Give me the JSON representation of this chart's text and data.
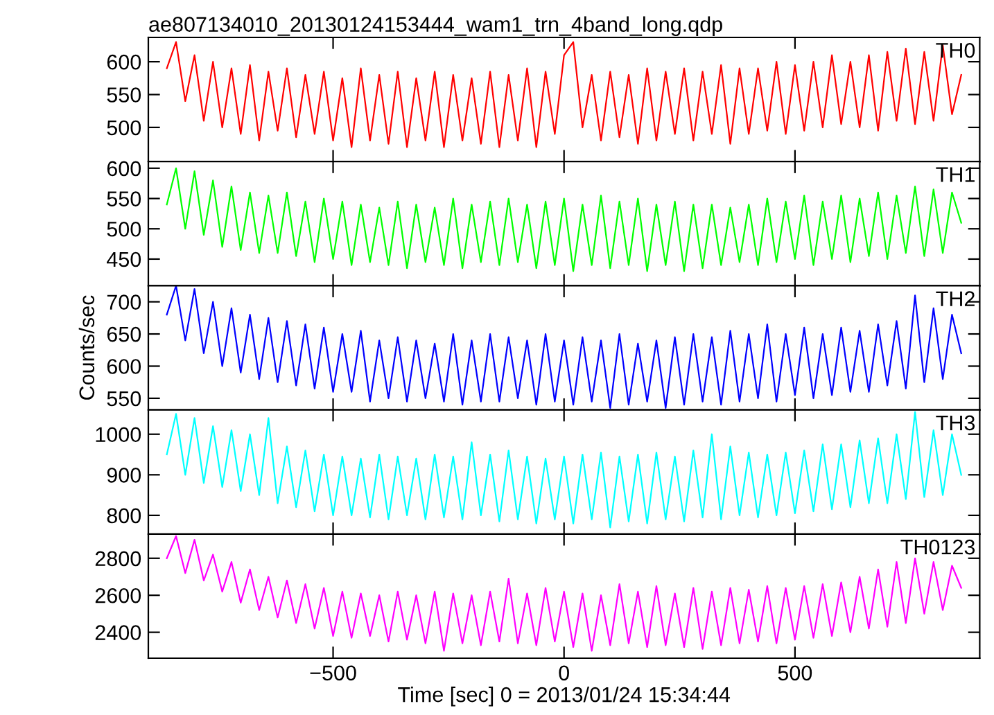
{
  "chart_data": [
    {
      "type": "line",
      "title": "ae807134010_20130124153444_wam1_trn_4band_long.qdp",
      "x": [
        -860,
        -840,
        -820,
        -800,
        -780,
        -760,
        -740,
        -720,
        -700,
        -680,
        -660,
        -640,
        -620,
        -600,
        -580,
        -560,
        -540,
        -520,
        -500,
        -480,
        -460,
        -440,
        -420,
        -400,
        -380,
        -360,
        -340,
        -320,
        -300,
        -280,
        -260,
        -240,
        -220,
        -200,
        -180,
        -160,
        -140,
        -120,
        -100,
        -80,
        -60,
        -40,
        -20,
        0,
        20,
        40,
        60,
        80,
        100,
        120,
        140,
        160,
        180,
        200,
        220,
        240,
        260,
        280,
        300,
        320,
        340,
        360,
        380,
        400,
        420,
        440,
        460,
        480,
        500,
        520,
        540,
        560,
        580,
        600,
        620,
        640,
        660,
        680,
        700,
        720,
        740,
        760,
        780,
        800,
        820,
        840,
        860
      ],
      "xlim": [
        -900,
        900
      ],
      "xticks": [
        -500,
        0,
        500
      ],
      "ylim": [
        448,
        637
      ],
      "yticks": [
        500,
        550,
        600
      ],
      "tick_labels": "y",
      "series": [
        {
          "name": "TH0",
          "color": "#ff0000",
          "values": [
            590,
            630,
            540,
            610,
            510,
            600,
            500,
            590,
            490,
            595,
            480,
            585,
            495,
            590,
            485,
            580,
            490,
            585,
            480,
            575,
            470,
            590,
            480,
            580,
            475,
            585,
            470,
            575,
            480,
            585,
            470,
            580,
            480,
            575,
            475,
            585,
            470,
            580,
            480,
            590,
            470,
            585,
            490,
            610,
            630,
            500,
            580,
            480,
            585,
            485,
            580,
            475,
            590,
            480,
            585,
            490,
            590,
            480,
            585,
            490,
            595,
            475,
            590,
            490,
            590,
            495,
            600,
            490,
            595,
            495,
            600,
            500,
            610,
            505,
            600,
            500,
            610,
            495,
            615,
            510,
            620,
            505,
            615,
            510,
            625,
            520,
            580
          ]
        }
      ]
    },
    {
      "type": "line",
      "x": [
        -860,
        -840,
        -820,
        -800,
        -780,
        -760,
        -740,
        -720,
        -700,
        -680,
        -660,
        -640,
        -620,
        -600,
        -580,
        -560,
        -540,
        -520,
        -500,
        -480,
        -460,
        -440,
        -420,
        -400,
        -380,
        -360,
        -340,
        -320,
        -300,
        -280,
        -260,
        -240,
        -220,
        -200,
        -180,
        -160,
        -140,
        -120,
        -100,
        -80,
        -60,
        -40,
        -20,
        0,
        20,
        40,
        60,
        80,
        100,
        120,
        140,
        160,
        180,
        200,
        220,
        240,
        260,
        280,
        300,
        320,
        340,
        360,
        380,
        400,
        420,
        440,
        460,
        480,
        500,
        520,
        540,
        560,
        580,
        600,
        620,
        640,
        660,
        680,
        700,
        720,
        740,
        760,
        780,
        800,
        820,
        840,
        860
      ],
      "xlim": [
        -900,
        900
      ],
      "xticks": [
        -500,
        0,
        500
      ],
      "ylim": [
        406,
        611
      ],
      "yticks": [
        450,
        500,
        550,
        600
      ],
      "tick_labels": "y",
      "series": [
        {
          "name": "TH1",
          "color": "#00ff00",
          "values": [
            540,
            600,
            500,
            595,
            490,
            580,
            470,
            570,
            465,
            560,
            460,
            555,
            460,
            560,
            455,
            545,
            445,
            550,
            450,
            545,
            440,
            540,
            445,
            535,
            440,
            545,
            435,
            540,
            445,
            535,
            440,
            550,
            435,
            540,
            445,
            545,
            440,
            550,
            445,
            540,
            435,
            545,
            440,
            550,
            430,
            540,
            440,
            555,
            435,
            545,
            440,
            550,
            430,
            540,
            440,
            545,
            430,
            540,
            435,
            540,
            440,
            535,
            445,
            540,
            440,
            550,
            445,
            545,
            450,
            555,
            440,
            545,
            450,
            555,
            445,
            550,
            455,
            560,
            450,
            555,
            460,
            570,
            455,
            565,
            460,
            560,
            510
          ]
        }
      ]
    },
    {
      "type": "line",
      "ylabel": "Counts/sec",
      "x": [
        -860,
        -840,
        -820,
        -800,
        -780,
        -760,
        -740,
        -720,
        -700,
        -680,
        -660,
        -640,
        -620,
        -600,
        -580,
        -560,
        -540,
        -520,
        -500,
        -480,
        -460,
        -440,
        -420,
        -400,
        -380,
        -360,
        -340,
        -320,
        -300,
        -280,
        -260,
        -240,
        -220,
        -200,
        -180,
        -160,
        -140,
        -120,
        -100,
        -80,
        -60,
        -40,
        -20,
        0,
        20,
        40,
        60,
        80,
        100,
        120,
        140,
        160,
        180,
        200,
        220,
        240,
        260,
        280,
        300,
        320,
        340,
        360,
        380,
        400,
        420,
        440,
        460,
        480,
        500,
        520,
        540,
        560,
        580,
        600,
        620,
        640,
        660,
        680,
        700,
        720,
        740,
        760,
        780,
        800,
        820,
        840,
        860
      ],
      "xlim": [
        -900,
        900
      ],
      "xticks": [
        -500,
        0,
        500
      ],
      "ylim": [
        532,
        725
      ],
      "yticks": [
        550,
        600,
        650,
        700
      ],
      "tick_labels": "y",
      "series": [
        {
          "name": "TH2",
          "color": "#0000ff",
          "values": [
            680,
            725,
            640,
            720,
            620,
            700,
            600,
            690,
            590,
            680,
            580,
            675,
            575,
            670,
            570,
            665,
            565,
            660,
            560,
            650,
            560,
            655,
            545,
            640,
            550,
            645,
            545,
            640,
            550,
            635,
            545,
            650,
            540,
            640,
            545,
            650,
            545,
            645,
            550,
            640,
            540,
            650,
            545,
            640,
            540,
            645,
            545,
            640,
            535,
            650,
            540,
            635,
            545,
            640,
            535,
            645,
            540,
            650,
            545,
            645,
            540,
            655,
            545,
            650,
            550,
            665,
            545,
            650,
            555,
            660,
            550,
            650,
            555,
            660,
            560,
            655,
            560,
            665,
            570,
            670,
            565,
            710,
            575,
            690,
            580,
            680,
            620
          ]
        }
      ]
    },
    {
      "type": "line",
      "x": [
        -860,
        -840,
        -820,
        -800,
        -780,
        -760,
        -740,
        -720,
        -700,
        -680,
        -660,
        -640,
        -620,
        -600,
        -580,
        -560,
        -540,
        -520,
        -500,
        -480,
        -460,
        -440,
        -420,
        -400,
        -380,
        -360,
        -340,
        -320,
        -300,
        -280,
        -260,
        -240,
        -220,
        -200,
        -180,
        -160,
        -140,
        -120,
        -100,
        -80,
        -60,
        -40,
        -20,
        0,
        20,
        40,
        60,
        80,
        100,
        120,
        140,
        160,
        180,
        200,
        220,
        240,
        260,
        280,
        300,
        320,
        340,
        360,
        380,
        400,
        420,
        440,
        460,
        480,
        500,
        520,
        540,
        560,
        580,
        600,
        620,
        640,
        660,
        680,
        700,
        720,
        740,
        760,
        780,
        800,
        820,
        840,
        860
      ],
      "xlim": [
        -900,
        900
      ],
      "xticks": [
        -500,
        0,
        500
      ],
      "ylim": [
        754,
        1060
      ],
      "yticks": [
        800,
        900,
        1000
      ],
      "tick_labels": "y",
      "series": [
        {
          "name": "TH3",
          "color": "#00ffff",
          "values": [
            950,
            1050,
            900,
            1040,
            880,
            1020,
            870,
            1010,
            860,
            1000,
            850,
            1040,
            830,
            970,
            820,
            960,
            810,
            950,
            800,
            945,
            800,
            940,
            795,
            950,
            790,
            945,
            800,
            940,
            790,
            950,
            795,
            945,
            790,
            980,
            800,
            950,
            785,
            960,
            790,
            945,
            780,
            940,
            790,
            945,
            780,
            950,
            790,
            955,
            770,
            945,
            785,
            950,
            780,
            955,
            790,
            945,
            785,
            960,
            795,
            1000,
            790,
            970,
            800,
            955,
            795,
            950,
            800,
            955,
            805,
            960,
            810,
            975,
            815,
            975,
            820,
            985,
            830,
            990,
            830,
            1000,
            840,
            1055,
            845,
            1010,
            850,
            1000,
            900
          ]
        }
      ]
    },
    {
      "type": "line",
      "xlabel": "Time [sec] 0 = 2013/01/24 15:34:44",
      "x": [
        -860,
        -840,
        -820,
        -800,
        -780,
        -760,
        -740,
        -720,
        -700,
        -680,
        -660,
        -640,
        -620,
        -600,
        -580,
        -560,
        -540,
        -520,
        -500,
        -480,
        -460,
        -440,
        -420,
        -400,
        -380,
        -360,
        -340,
        -320,
        -300,
        -280,
        -260,
        -240,
        -220,
        -200,
        -180,
        -160,
        -140,
        -120,
        -100,
        -80,
        -60,
        -40,
        -20,
        0,
        20,
        40,
        60,
        80,
        100,
        120,
        140,
        160,
        180,
        200,
        220,
        240,
        260,
        280,
        300,
        320,
        340,
        360,
        380,
        400,
        420,
        440,
        460,
        480,
        500,
        520,
        540,
        560,
        580,
        600,
        620,
        640,
        660,
        680,
        700,
        720,
        740,
        760,
        780,
        800,
        820,
        840,
        860
      ],
      "xlim": [
        -900,
        900
      ],
      "xticks": [
        -500,
        0,
        500
      ],
      "ylim": [
        2260,
        2931
      ],
      "yticks": [
        2400,
        2600,
        2800
      ],
      "series": [
        {
          "name": "TH0123",
          "color": "#ff00ff",
          "values": [
            2800,
            2920,
            2720,
            2900,
            2680,
            2820,
            2620,
            2780,
            2560,
            2740,
            2520,
            2700,
            2480,
            2680,
            2450,
            2660,
            2420,
            2640,
            2380,
            2620,
            2370,
            2610,
            2380,
            2600,
            2350,
            2620,
            2360,
            2600,
            2340,
            2620,
            2300,
            2610,
            2340,
            2600,
            2330,
            2620,
            2350,
            2690,
            2340,
            2610,
            2330,
            2640,
            2350,
            2620,
            2320,
            2610,
            2300,
            2600,
            2330,
            2660,
            2340,
            2620,
            2320,
            2650,
            2330,
            2610,
            2320,
            2640,
            2310,
            2620,
            2330,
            2640,
            2340,
            2630,
            2350,
            2650,
            2340,
            2640,
            2360,
            2650,
            2370,
            2660,
            2380,
            2670,
            2400,
            2700,
            2420,
            2740,
            2430,
            2780,
            2450,
            2800,
            2500,
            2780,
            2520,
            2760,
            2640
          ]
        }
      ]
    }
  ]
}
